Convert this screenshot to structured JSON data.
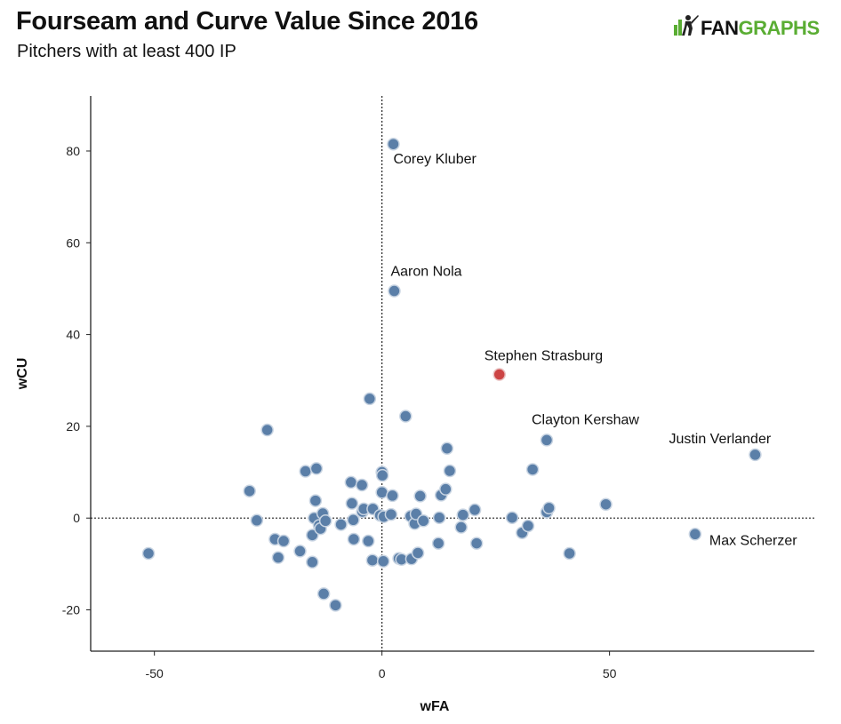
{
  "header": {
    "title": "Fourseam and Curve Value Since 2016",
    "subtitle": "Pitchers with at least 400 IP",
    "logo_text": "FANGRAPHS",
    "logo_color": "#5aad33"
  },
  "chart_data": {
    "type": "scatter",
    "xlabel": "wFA",
    "ylabel": "wCU",
    "xlim": [
      -64,
      95
    ],
    "ylim": [
      -29,
      92
    ],
    "xticks": [
      -50,
      0,
      50
    ],
    "yticks": [
      -20,
      0,
      20,
      40,
      60,
      80
    ],
    "reference_lines": {
      "x": 0,
      "y": 0,
      "style": "dotted"
    },
    "grid": false,
    "point_color": "#5b7fa8",
    "highlight_color": "#cc4444",
    "labeled_points": [
      {
        "label": "Corey Kluber",
        "x": 2.5,
        "y": 81.5
      },
      {
        "label": "Aaron Nola",
        "x": 2.7,
        "y": 49.5
      },
      {
        "label": "Stephen Strasburg",
        "x": 25.8,
        "y": 31.3,
        "highlight": true
      },
      {
        "label": "Clayton Kershaw",
        "x": 36.2,
        "y": 17.0
      },
      {
        "label": "Justin Verlander",
        "x": 82.0,
        "y": 13.8
      },
      {
        "label": "Max Scherzer",
        "x": 68.8,
        "y": -3.5
      }
    ],
    "points": [
      [
        -51.3,
        -7.7
      ],
      [
        -29.1,
        5.9
      ],
      [
        -27.5,
        -0.5
      ],
      [
        -25.2,
        19.2
      ],
      [
        -23.5,
        -4.6
      ],
      [
        -22.8,
        -8.6
      ],
      [
        -21.6,
        -5.0
      ],
      [
        -18.0,
        -7.2
      ],
      [
        -16.8,
        10.2
      ],
      [
        -15.3,
        -9.6
      ],
      [
        -15.3,
        -3.7
      ],
      [
        -14.9,
        0.0
      ],
      [
        -14.6,
        3.8
      ],
      [
        -14.4,
        10.8
      ],
      [
        -13.8,
        -1.6
      ],
      [
        -13.5,
        -2.3
      ],
      [
        -13.0,
        1.0
      ],
      [
        -12.8,
        -16.5
      ],
      [
        -12.4,
        -0.6
      ],
      [
        -10.2,
        -19.0
      ],
      [
        -9.0,
        -1.4
      ],
      [
        -6.8,
        7.8
      ],
      [
        -6.6,
        3.2
      ],
      [
        -6.3,
        -0.4
      ],
      [
        -6.2,
        -4.6
      ],
      [
        -4.4,
        7.2
      ],
      [
        -4.3,
        1.4
      ],
      [
        -4.0,
        2.0
      ],
      [
        -3.0,
        -5.0
      ],
      [
        -2.7,
        26.0
      ],
      [
        -2.1,
        -9.2
      ],
      [
        -2.0,
        2.0
      ],
      [
        -0.4,
        0.6
      ],
      [
        0.0,
        5.6
      ],
      [
        0.0,
        10.0
      ],
      [
        0.1,
        9.3
      ],
      [
        0.3,
        -9.4
      ],
      [
        0.4,
        0.3
      ],
      [
        2.0,
        0.8
      ],
      [
        2.3,
        4.9
      ],
      [
        3.7,
        -8.8
      ],
      [
        4.3,
        -9.0
      ],
      [
        5.2,
        22.2
      ],
      [
        6.3,
        0.4
      ],
      [
        6.5,
        -8.9
      ],
      [
        7.2,
        -1.2
      ],
      [
        7.5,
        0.9
      ],
      [
        7.9,
        -7.6
      ],
      [
        8.4,
        4.8
      ],
      [
        9.1,
        -0.6
      ],
      [
        12.4,
        -5.5
      ],
      [
        12.6,
        0.1
      ],
      [
        13.0,
        5.0
      ],
      [
        14.0,
        6.3
      ],
      [
        14.3,
        15.2
      ],
      [
        14.9,
        10.3
      ],
      [
        17.4,
        -2.0
      ],
      [
        17.8,
        0.7
      ],
      [
        20.4,
        1.8
      ],
      [
        20.8,
        -5.5
      ],
      [
        28.6,
        0.1
      ],
      [
        30.8,
        -3.2
      ],
      [
        32.1,
        -1.7
      ],
      [
        33.1,
        10.6
      ],
      [
        36.2,
        1.3
      ],
      [
        36.7,
        2.2
      ],
      [
        41.2,
        -7.7
      ],
      [
        49.2,
        3.0
      ]
    ]
  }
}
